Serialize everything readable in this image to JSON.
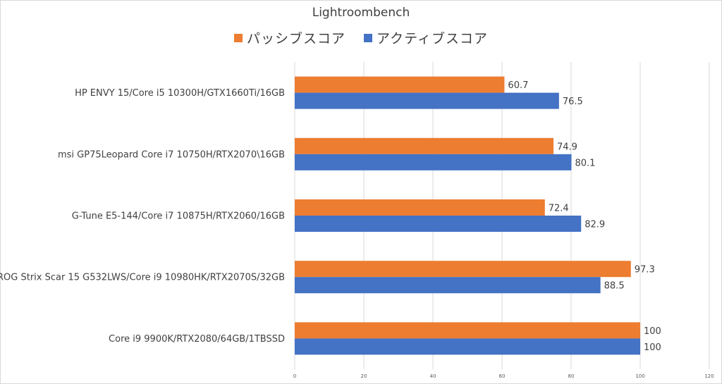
{
  "chart_data": {
    "type": "bar",
    "orientation": "horizontal",
    "title": "Lightroombench",
    "categories": [
      "HP ENVY 15/Core i5 10300H/GTX1660Ti/16GB",
      "msi GP75Leopard Core i7 10750H/RTX2070\\16GB",
      "G-Tune E5-144/Core i7 10875H/RTX2060/16GB",
      "ROG Strix Scar 15 G532LWS/Core i9 10980HK/RTX2070S/32GB",
      "Core i9 9900K/RTX2080/64GB/1TBSSD"
    ],
    "series": [
      {
        "name": "パッシブスコア",
        "color": "#ed7d31",
        "values": [
          60.7,
          74.9,
          72.4,
          97.3,
          100
        ]
      },
      {
        "name": "アクティブスコア",
        "color": "#4472c4",
        "values": [
          76.5,
          80.1,
          82.9,
          88.5,
          100
        ]
      }
    ],
    "xlim": [
      0,
      120
    ],
    "xticks": [
      0,
      20,
      40,
      60,
      80,
      100,
      120
    ],
    "grid": true,
    "legend_position": "top"
  }
}
